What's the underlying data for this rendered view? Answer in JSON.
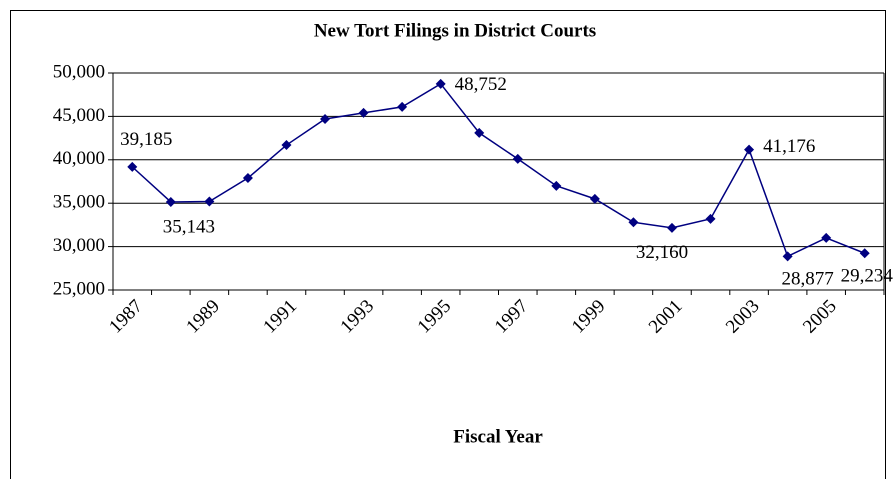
{
  "chart_data": {
    "type": "line",
    "title": "New Tort Filings in District Courts",
    "x_label": "Fiscal Year",
    "categories": [
      "1987",
      null,
      "1989",
      null,
      "1991",
      null,
      "1993",
      null,
      "1995",
      null,
      "1997",
      null,
      "1999",
      null,
      "2001",
      null,
      "2003",
      null,
      "2005",
      null
    ],
    "series": [
      {
        "name": "New Tort Filings",
        "color": "#000080",
        "values": [
          39185,
          35143,
          35200,
          37900,
          41700,
          44700,
          45400,
          46100,
          48752,
          43100,
          40100,
          37000,
          35500,
          32800,
          32160,
          33200,
          41176,
          28877,
          31000,
          29234
        ],
        "value_labels": [
          "39,185",
          "35,143",
          null,
          null,
          null,
          null,
          null,
          null,
          "48,752",
          null,
          null,
          null,
          null,
          null,
          "32,160",
          null,
          "41,176",
          "28,877",
          null,
          "29,234"
        ]
      }
    ],
    "ylim": [
      25000,
      50000
    ],
    "yticks": [
      {
        "value": 25000,
        "label": "25,000"
      },
      {
        "value": 30000,
        "label": "30,000"
      },
      {
        "value": 35000,
        "label": "35,000"
      },
      {
        "value": 40000,
        "label": "40,000"
      },
      {
        "value": 45000,
        "label": "45,000"
      },
      {
        "value": 50000,
        "label": "50,000"
      }
    ],
    "grid": true
  }
}
